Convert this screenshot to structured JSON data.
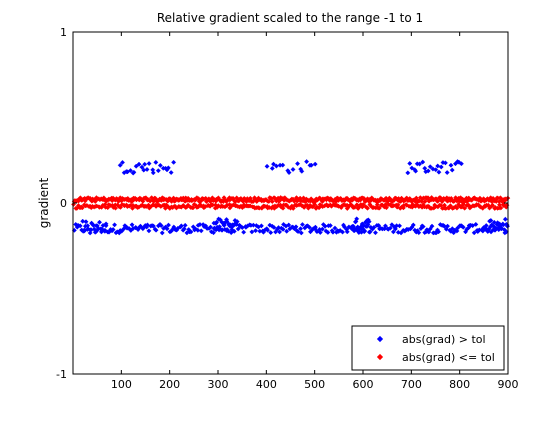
{
  "chart_data": {
    "type": "scatter",
    "title": "Relative gradient scaled to the range -1 to 1",
    "xlabel": "",
    "ylabel": "gradient",
    "xlim": [
      0,
      900
    ],
    "ylim": [
      -1,
      1
    ],
    "xticks": [
      100,
      200,
      300,
      400,
      500,
      600,
      700,
      800,
      900
    ],
    "yticks": [
      -1,
      0,
      1
    ],
    "yticklabels": [
      "-1",
      "0",
      "1"
    ],
    "grid": false,
    "legend_position": "bottom-right",
    "series": [
      {
        "name": "abs(grad) > tol",
        "color": "#0000ff",
        "marker": "diamond",
        "bands": [
          {
            "x_range": [
              1,
              900
            ],
            "y_center": -0.15,
            "y_spread": 0.025,
            "count": 300
          },
          {
            "x_range": [
              290,
              340
            ],
            "y_center": -0.13,
            "y_spread": 0.04,
            "count": 25
          },
          {
            "x_range": [
              575,
              615
            ],
            "y_center": -0.13,
            "y_spread": 0.04,
            "count": 25
          },
          {
            "x_range": [
              855,
              900
            ],
            "y_center": -0.13,
            "y_spread": 0.04,
            "count": 20
          },
          {
            "x_range": [
              20,
              70
            ],
            "y_center": -0.14,
            "y_spread": 0.04,
            "count": 15
          },
          {
            "x_range": [
              95,
              210
            ],
            "y_center": 0.21,
            "y_spread": 0.035,
            "count": 26
          },
          {
            "x_range": [
              400,
              505
            ],
            "y_center": 0.21,
            "y_spread": 0.035,
            "count": 16
          },
          {
            "x_range": [
              690,
              805
            ],
            "y_center": 0.21,
            "y_spread": 0.035,
            "count": 26
          }
        ]
      },
      {
        "name": "abs(grad) <= tol",
        "color": "#ff0000",
        "marker": "diamond",
        "bands": [
          {
            "x_range": [
              1,
              900
            ],
            "y_center": 0.02,
            "y_spread": 0.012,
            "count": 420
          },
          {
            "x_range": [
              1,
              900
            ],
            "y_center": -0.02,
            "y_spread": 0.012,
            "count": 300
          }
        ]
      }
    ]
  }
}
